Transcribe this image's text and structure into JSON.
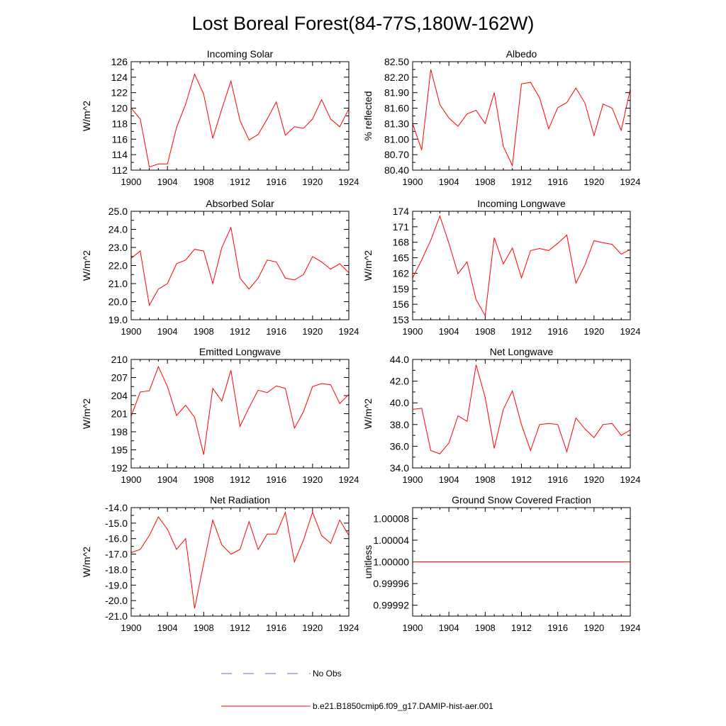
{
  "title": "Lost Boreal Forest(84-77S,180W-162W)",
  "legend": {
    "placement": "bottom-center",
    "entries": [
      {
        "label": "No Obs",
        "color": "#6b6bd6",
        "style": "dashed"
      },
      {
        "label": "b.e21.B1850cmip6.f09_g17.DAMIP-hist-aer.001",
        "color": "#ff0000",
        "style": "solid"
      }
    ]
  },
  "chart_data": [
    {
      "type": "line",
      "title": "Incoming Solar",
      "ylabel": "W/m^2",
      "xlabel": "",
      "xlim": [
        1900,
        1924
      ],
      "ylim": [
        112,
        126
      ],
      "xticks": [
        "1900",
        "1904",
        "1908",
        "1912",
        "1916",
        "1920",
        "1924"
      ],
      "yticks": [
        "112",
        "114",
        "116",
        "118",
        "120",
        "122",
        "124",
        "126"
      ],
      "series": [
        {
          "color": "#ff0000",
          "x": [
            1900,
            1901,
            1902,
            1903,
            1904,
            1905,
            1906,
            1907,
            1908,
            1909,
            1910,
            1911,
            1912,
            1913,
            1914,
            1915,
            1916,
            1917,
            1918,
            1919,
            1920,
            1921,
            1922,
            1923,
            1924
          ],
          "values": [
            120.0,
            118.6,
            112.4,
            112.8,
            112.8,
            117.5,
            120.5,
            124.4,
            121.8,
            116.1,
            119.9,
            123.5,
            118.4,
            115.9,
            116.6,
            118.6,
            120.8,
            116.5,
            117.6,
            117.4,
            118.6,
            121.1,
            118.6,
            117.6,
            119.9
          ]
        }
      ]
    },
    {
      "type": "line",
      "title": "Albedo",
      "ylabel": "% reflected",
      "xlabel": "",
      "xlim": [
        1900,
        1924
      ],
      "ylim": [
        80.4,
        82.5
      ],
      "xticks": [
        "1900",
        "1904",
        "1908",
        "1912",
        "1916",
        "1920",
        "1924"
      ],
      "yticks": [
        "80.40",
        "80.70",
        "81.00",
        "81.30",
        "81.60",
        "81.90",
        "82.20",
        "82.50"
      ],
      "series": [
        {
          "color": "#ff0000",
          "x": [
            1900,
            1901,
            1902,
            1903,
            1904,
            1905,
            1906,
            1907,
            1908,
            1909,
            1910,
            1911,
            1912,
            1913,
            1914,
            1915,
            1916,
            1917,
            1918,
            1919,
            1920,
            1921,
            1922,
            1923,
            1924
          ],
          "values": [
            81.3,
            80.79,
            82.35,
            81.67,
            81.41,
            81.25,
            81.49,
            81.56,
            81.3,
            81.9,
            80.86,
            80.49,
            82.07,
            82.1,
            81.8,
            81.2,
            81.61,
            81.71,
            81.99,
            81.7,
            81.07,
            81.68,
            81.6,
            81.17,
            81.97
          ]
        }
      ]
    },
    {
      "type": "line",
      "title": "Absorbed Solar",
      "ylabel": "W/m^2",
      "xlabel": "",
      "xlim": [
        1900,
        1924
      ],
      "ylim": [
        19.0,
        25.0
      ],
      "xticks": [
        "1900",
        "1904",
        "1908",
        "1912",
        "1916",
        "1920",
        "1924"
      ],
      "yticks": [
        "19.0",
        "20.0",
        "21.0",
        "22.0",
        "23.0",
        "24.0",
        "25.0"
      ],
      "series": [
        {
          "color": "#ff0000",
          "x": [
            1900,
            1901,
            1902,
            1903,
            1904,
            1905,
            1906,
            1907,
            1908,
            1909,
            1910,
            1911,
            1912,
            1913,
            1914,
            1915,
            1916,
            1917,
            1918,
            1919,
            1920,
            1921,
            1922,
            1923,
            1924
          ],
          "values": [
            22.4,
            22.8,
            19.8,
            20.7,
            21.0,
            22.1,
            22.3,
            22.9,
            22.8,
            21.0,
            23.0,
            24.1,
            21.3,
            20.7,
            21.3,
            22.3,
            22.2,
            21.3,
            21.2,
            21.5,
            22.5,
            22.2,
            21.8,
            22.1,
            21.6
          ]
        }
      ]
    },
    {
      "type": "line",
      "title": "Incoming Longwave",
      "ylabel": "W/m^2",
      "xlabel": "",
      "xlim": [
        1900,
        1924
      ],
      "ylim": [
        153,
        174
      ],
      "xticks": [
        "1900",
        "1904",
        "1908",
        "1912",
        "1916",
        "1920",
        "1924"
      ],
      "yticks": [
        "153",
        "156",
        "159",
        "162",
        "165",
        "168",
        "171",
        "174"
      ],
      "series": [
        {
          "color": "#ff0000",
          "x": [
            1900,
            1901,
            1902,
            1903,
            1904,
            1905,
            1906,
            1907,
            1908,
            1909,
            1910,
            1911,
            1912,
            1913,
            1914,
            1915,
            1916,
            1917,
            1918,
            1919,
            1920,
            1921,
            1922,
            1923,
            1924
          ],
          "values": [
            161.1,
            164.6,
            168.4,
            173.1,
            167.8,
            161.9,
            164.2,
            156.9,
            153.8,
            168.9,
            163.8,
            166.9,
            161.1,
            166.4,
            166.8,
            166.4,
            167.8,
            169.4,
            160.1,
            163.6,
            168.3,
            167.9,
            167.6,
            165.7,
            166.6
          ]
        }
      ]
    },
    {
      "type": "line",
      "title": "Emitted Longwave",
      "ylabel": "W/m^2",
      "xlabel": "",
      "xlim": [
        1900,
        1924
      ],
      "ylim": [
        192,
        210
      ],
      "xticks": [
        "1900",
        "1904",
        "1908",
        "1912",
        "1916",
        "1920",
        "1924"
      ],
      "yticks": [
        "192",
        "195",
        "198",
        "201",
        "204",
        "207",
        "210"
      ],
      "series": [
        {
          "color": "#ff0000",
          "x": [
            1900,
            1901,
            1902,
            1903,
            1904,
            1905,
            1906,
            1907,
            1908,
            1909,
            1910,
            1911,
            1912,
            1913,
            1914,
            1915,
            1916,
            1917,
            1918,
            1919,
            1920,
            1921,
            1922,
            1923,
            1924
          ],
          "values": [
            200.6,
            204.6,
            204.8,
            208.8,
            205.5,
            200.7,
            202.4,
            200.4,
            194.2,
            205.2,
            203.1,
            208.2,
            198.9,
            202.0,
            204.9,
            204.5,
            205.6,
            205.2,
            198.6,
            201.3,
            205.5,
            206.0,
            205.8,
            202.7,
            204.2
          ]
        }
      ]
    },
    {
      "type": "line",
      "title": "Net Longwave",
      "ylabel": "W/m^2",
      "xlabel": "",
      "xlim": [
        1900,
        1924
      ],
      "ylim": [
        34.0,
        44.0
      ],
      "xticks": [
        "1900",
        "1904",
        "1908",
        "1912",
        "1916",
        "1920",
        "1924"
      ],
      "yticks": [
        "34.0",
        "36.0",
        "38.0",
        "40.0",
        "42.0",
        "44.0"
      ],
      "series": [
        {
          "color": "#ff0000",
          "x": [
            1900,
            1901,
            1902,
            1903,
            1904,
            1905,
            1906,
            1907,
            1908,
            1909,
            1910,
            1911,
            1912,
            1913,
            1914,
            1915,
            1916,
            1917,
            1918,
            1919,
            1920,
            1921,
            1922,
            1923,
            1924
          ],
          "values": [
            39.4,
            39.5,
            35.6,
            35.3,
            36.3,
            38.8,
            38.3,
            43.5,
            40.5,
            35.8,
            39.4,
            41.1,
            38.0,
            35.6,
            38.0,
            38.1,
            38.0,
            35.5,
            38.6,
            37.6,
            36.8,
            38.0,
            38.1,
            37.0,
            37.5
          ]
        }
      ]
    },
    {
      "type": "line",
      "title": "Net Radiation",
      "ylabel": "W/m^2",
      "xlabel": "",
      "xlim": [
        1900,
        1924
      ],
      "ylim": [
        -21.0,
        -14.0
      ],
      "xticks": [
        "1900",
        "1904",
        "1908",
        "1912",
        "1916",
        "1920",
        "1924"
      ],
      "yticks": [
        "-21.0",
        "-20.0",
        "-19.0",
        "-18.0",
        "-17.0",
        "-16.0",
        "-15.0",
        "-14.0"
      ],
      "series": [
        {
          "color": "#ff0000",
          "x": [
            1900,
            1901,
            1902,
            1903,
            1904,
            1905,
            1906,
            1907,
            1908,
            1909,
            1910,
            1911,
            1912,
            1913,
            1914,
            1915,
            1916,
            1917,
            1918,
            1919,
            1920,
            1921,
            1922,
            1923,
            1924
          ],
          "values": [
            -16.9,
            -16.7,
            -15.8,
            -14.6,
            -15.4,
            -16.7,
            -16.0,
            -20.5,
            -17.6,
            -14.8,
            -16.4,
            -17.0,
            -16.7,
            -14.9,
            -16.7,
            -15.7,
            -15.7,
            -14.3,
            -17.5,
            -16.1,
            -14.3,
            -15.8,
            -16.3,
            -14.8,
            -15.8
          ]
        }
      ]
    },
    {
      "type": "line",
      "title": "Ground Snow Covered Fraction",
      "ylabel": "unitless",
      "xlabel": "",
      "xlim": [
        1900,
        1924
      ],
      "ylim": [
        0.9999,
        1.0001
      ],
      "xticks": [
        "1900",
        "1904",
        "1908",
        "1912",
        "1916",
        "1920",
        "1924"
      ],
      "yticks": [
        "0.99992",
        "0.99996",
        "1.00000",
        "1.00004",
        "1.00008"
      ],
      "series": [
        {
          "color": "#ff0000",
          "x": [
            1900,
            1924
          ],
          "values": [
            1.0,
            1.0
          ]
        }
      ]
    }
  ]
}
